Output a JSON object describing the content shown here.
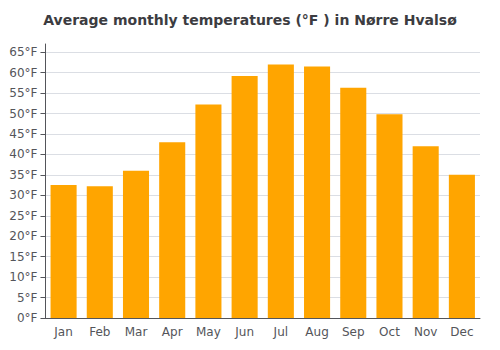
{
  "chart_data": {
    "type": "bar",
    "title": "Average monthly temperatures (°F ) in Nørre Hvalsø",
    "categories": [
      "Jan",
      "Feb",
      "Mar",
      "Apr",
      "May",
      "Jun",
      "Jul",
      "Aug",
      "Sep",
      "Oct",
      "Nov",
      "Dec"
    ],
    "values": [
      32.5,
      32.2,
      36.0,
      43.0,
      52.2,
      59.2,
      62.0,
      61.5,
      56.3,
      49.8,
      42.0,
      35.0
    ],
    "color": "#FFA500",
    "ylim": [
      0,
      67
    ],
    "yticks": [
      {
        "value": 0,
        "label": "0°F"
      },
      {
        "value": 5,
        "label": "5°F"
      },
      {
        "value": 10,
        "label": "10°F"
      },
      {
        "value": 15,
        "label": "15°F"
      },
      {
        "value": 20,
        "label": "20°F"
      },
      {
        "value": 25,
        "label": "25°F"
      },
      {
        "value": 30,
        "label": "30°F"
      },
      {
        "value": 35,
        "label": "35°F"
      },
      {
        "value": 40,
        "label": "40°F"
      },
      {
        "value": 45,
        "label": "45°F"
      },
      {
        "value": 50,
        "label": "50°F"
      },
      {
        "value": 55,
        "label": "55°F"
      },
      {
        "value": 60,
        "label": "60°F"
      },
      {
        "value": 65,
        "label": "65°F"
      }
    ],
    "grid": true
  }
}
